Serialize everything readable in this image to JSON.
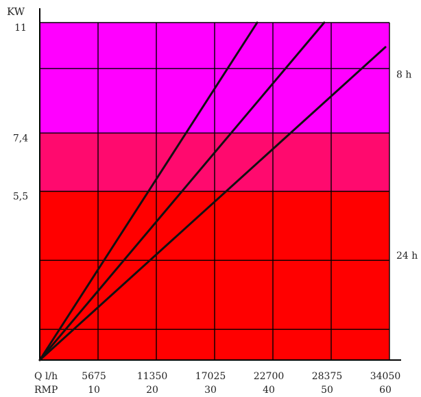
{
  "chart_data": {
    "type": "line",
    "y_axis_label": "KW",
    "x_row1_label": "Q l/h",
    "x_row2_label": "RMP",
    "x_ticks_q": [
      "5675",
      "11350",
      "17025",
      "22700",
      "28375",
      "34050"
    ],
    "x_ticks_rmp": [
      "10",
      "20",
      "30",
      "40",
      "50",
      "60"
    ],
    "y_ticks": [
      {
        "label": "11",
        "value": 11
      },
      {
        "label": "7,4",
        "value": 7.4
      },
      {
        "label": "5,5",
        "value": 5.5
      }
    ],
    "xlim_rmp": [
      0,
      60
    ],
    "ylim_kw": [
      0,
      11
    ],
    "zones": [
      {
        "name": "8 h",
        "from_kw": 7.4,
        "to_kw": 11,
        "color": "#ff00ff"
      },
      {
        "name": "",
        "from_kw": 5.5,
        "to_kw": 7.4,
        "color": "#ff0a6e"
      },
      {
        "name": "24 h",
        "from_kw": 0,
        "to_kw": 5.5,
        "color": "#ff0000"
      }
    ],
    "zone_labels": [
      {
        "text": "8 h",
        "at_kw": 9.2
      },
      {
        "text": "24 h",
        "at_kw": 3.3
      }
    ],
    "series": [
      {
        "x": [
          0,
          37.3
        ],
        "y": [
          0,
          11
        ]
      },
      {
        "x": [
          0,
          48.8
        ],
        "y": [
          0,
          11
        ]
      },
      {
        "x": [
          0,
          59.3
        ],
        "y": [
          0,
          10.2
        ]
      }
    ],
    "grid": true,
    "grid_color": "#000000",
    "line_color": "#111111"
  }
}
